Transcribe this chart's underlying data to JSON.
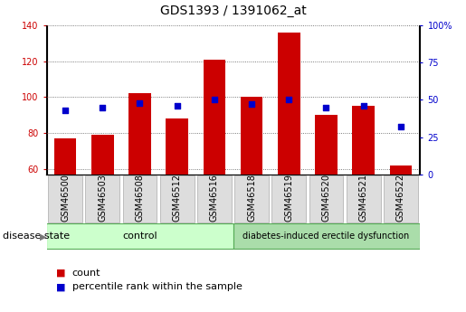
{
  "title": "GDS1393 / 1391062_at",
  "samples": [
    "GSM46500",
    "GSM46503",
    "GSM46508",
    "GSM46512",
    "GSM46516",
    "GSM46518",
    "GSM46519",
    "GSM46520",
    "GSM46521",
    "GSM46522"
  ],
  "counts": [
    77,
    79,
    102,
    88,
    121,
    100,
    136,
    90,
    95,
    62
  ],
  "percentiles": [
    43,
    45,
    48,
    46,
    50,
    47,
    50,
    45,
    46,
    32
  ],
  "ylim_left": [
    57,
    140
  ],
  "ylim_right": [
    0,
    100
  ],
  "yticks_left": [
    60,
    80,
    100,
    120,
    140
  ],
  "yticks_right": [
    0,
    25,
    50,
    75,
    100
  ],
  "ytick_labels_right": [
    "0",
    "25",
    "50",
    "75",
    "100%"
  ],
  "bar_color": "#cc0000",
  "square_color": "#0000cc",
  "group1_label": "control",
  "group2_label": "diabetes-induced erectile dysfunction",
  "group1_color": "#ccffcc",
  "group2_color": "#aaddaa",
  "group1_count": 5,
  "group2_count": 5,
  "legend_count_label": "count",
  "legend_pct_label": "percentile rank within the sample",
  "disease_state_label": "disease state",
  "grid_color": "#555555",
  "bar_width": 0.6,
  "title_fontsize": 10,
  "tick_label_fontsize": 7,
  "axis_label_fontsize": 8,
  "legend_fontsize": 8,
  "sample_box_color": "#dddddd",
  "sample_box_edge": "#aaaaaa"
}
